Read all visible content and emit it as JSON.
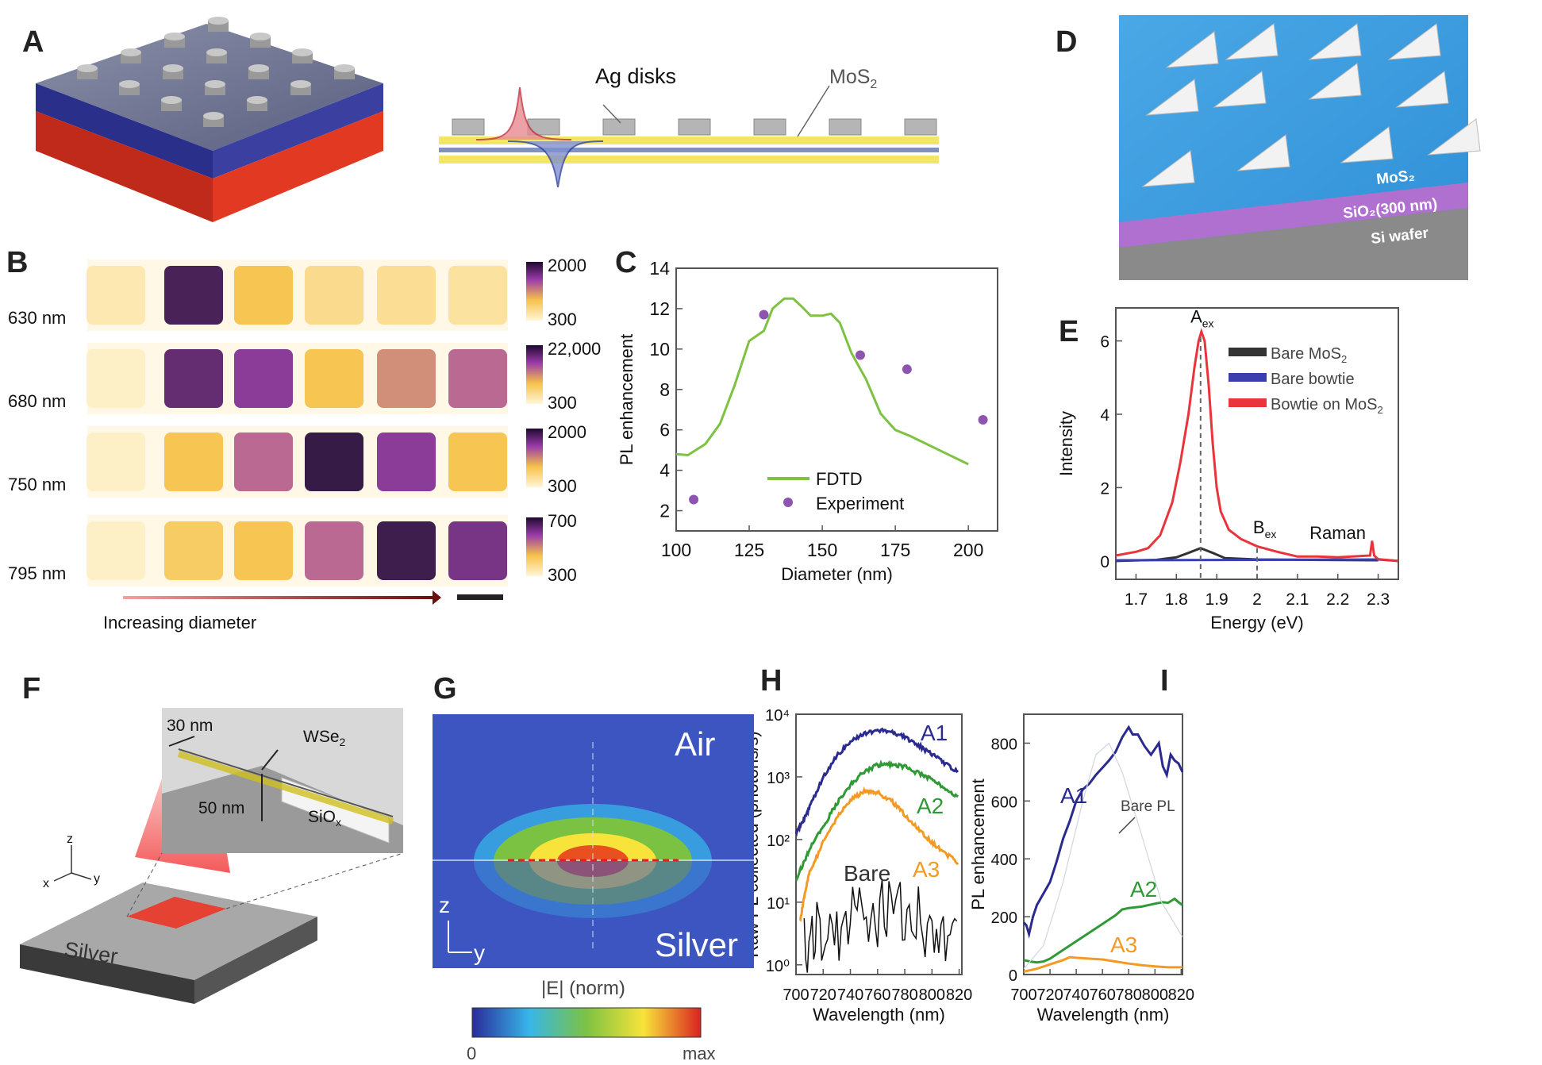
{
  "panel_labels": [
    "A",
    "B",
    "C",
    "D",
    "E",
    "F",
    "G",
    "H",
    "I"
  ],
  "panel_a": {
    "ag_disks_label": "Ag disks",
    "mos2_label": "MoS",
    "mos2_sub": "2"
  },
  "panel_b": {
    "rows": [
      {
        "wavelength": "630 nm",
        "cbar_max": "2000",
        "cbar_min": "300",
        "levels": [
          0.1,
          0.92,
          0.35,
          0.2,
          0.18,
          0.15
        ]
      },
      {
        "wavelength": "680 nm",
        "cbar_max": "22,000",
        "cbar_min": "300",
        "levels": [
          0.05,
          0.85,
          0.75,
          0.35,
          0.5,
          0.6
        ]
      },
      {
        "wavelength": "750 nm",
        "cbar_max": "2000",
        "cbar_min": "300",
        "levels": [
          0.05,
          0.35,
          0.6,
          0.97,
          0.75,
          0.35
        ]
      },
      {
        "wavelength": "795 nm",
        "cbar_max": "700",
        "cbar_min": "300",
        "levels": [
          0.05,
          0.3,
          0.35,
          0.6,
          0.95,
          0.8
        ]
      }
    ],
    "arrow_label": "Increasing diameter"
  },
  "panel_d": {
    "mos2": "MoS₂",
    "sio2": "SiO₂(300 nm)",
    "si": "Si wafer"
  },
  "panel_f": {
    "thickness_label": "30 nm",
    "material": "WSe",
    "material_sub": "2",
    "gap_label": "50 nm",
    "oxide": "SiO",
    "oxide_sub": "x",
    "substrate": "Silver",
    "axis_z": "z",
    "axis_x": "x",
    "axis_y": "y"
  },
  "panel_g": {
    "top_label": "Air",
    "bottom_label": "Silver",
    "axis_z": "z",
    "axis_y": "y",
    "cbar_title": "|E| (norm)",
    "cbar_min": "0",
    "cbar_max": "max"
  },
  "colors": {
    "fdtd": "#7dc243",
    "experiment": "#8e55b0",
    "bare_mos2": "#333333",
    "bare_bowtie": "#3a3fb0",
    "bowtie_on_mos2": "#e8343a",
    "A1": "#2b2a8f",
    "A2": "#2f9a35",
    "A3": "#f39a25",
    "bare": "#111111"
  },
  "chart_data": [
    {
      "id": "C",
      "type": "line",
      "xlabel": "Diameter (nm)",
      "ylabel": "PL enhancement",
      "xlim": [
        100,
        210
      ],
      "ylim": [
        1,
        14
      ],
      "xticks": [
        100,
        125,
        150,
        175,
        200
      ],
      "yticks": [
        2,
        4,
        6,
        8,
        10,
        12,
        14
      ],
      "legend": "bottom-center",
      "series": [
        {
          "name": "FDTD",
          "kind": "line",
          "color": "#7dc243",
          "x": [
            100,
            104,
            110,
            115,
            120,
            125,
            128,
            130,
            133,
            137,
            140,
            143,
            146,
            150,
            153,
            156,
            160,
            165,
            170,
            175,
            180,
            190,
            200
          ],
          "y": [
            4.8,
            4.75,
            5.3,
            6.3,
            8.2,
            10.4,
            10.7,
            10.9,
            12.0,
            12.5,
            12.5,
            12.1,
            11.65,
            11.65,
            11.75,
            11.3,
            9.8,
            8.5,
            6.8,
            6.0,
            5.7,
            5.0,
            4.3
          ]
        },
        {
          "name": "Experiment",
          "kind": "scatter",
          "color": "#8e55b0",
          "x": [
            106,
            130,
            163,
            179,
            205
          ],
          "y": [
            2.55,
            11.7,
            9.7,
            9.0,
            6.5
          ]
        }
      ]
    },
    {
      "id": "E",
      "type": "line",
      "xlabel": "Energy (eV)",
      "ylabel": "Intensity",
      "xlim": [
        1.65,
        2.35
      ],
      "ylim": [
        -0.5,
        6.9
      ],
      "xticks": [
        1.7,
        1.8,
        1.9,
        2.0,
        2.1,
        2.2,
        2.3
      ],
      "yticks": [
        0,
        2,
        4,
        6
      ],
      "legend": "top-right",
      "annotations": [
        {
          "text": "A",
          "sub": "ex",
          "x": 1.86
        },
        {
          "text": "B",
          "sub": "ex",
          "x": 2.0
        },
        {
          "text": "Raman",
          "x": 2.2
        }
      ],
      "series": [
        {
          "name": "Bare MoS",
          "name_sub": "2",
          "color": "#333333",
          "x": [
            1.65,
            1.75,
            1.8,
            1.83,
            1.86,
            1.89,
            1.92,
            2.0,
            2.3
          ],
          "y": [
            0,
            0.03,
            0.1,
            0.22,
            0.35,
            0.22,
            0.08,
            0.04,
            0.02
          ]
        },
        {
          "name": "Bare bowtie",
          "color": "#3a3fb0",
          "x": [
            1.65,
            2.0,
            2.3,
            2.35
          ],
          "y": [
            0.02,
            0.03,
            0.04,
            0.0
          ]
        },
        {
          "name": "Bowtie on MoS",
          "name_sub": "2",
          "color": "#e8343a",
          "x": [
            1.65,
            1.7,
            1.73,
            1.76,
            1.79,
            1.81,
            1.83,
            1.845,
            1.855,
            1.862,
            1.87,
            1.88,
            1.89,
            1.9,
            1.91,
            1.93,
            1.96,
            2.0,
            2.05,
            2.1,
            2.15,
            2.2,
            2.28,
            2.285,
            2.29,
            2.3,
            2.35
          ],
          "y": [
            0.15,
            0.25,
            0.35,
            0.7,
            1.6,
            2.7,
            4.0,
            5.3,
            6.0,
            6.25,
            6.0,
            4.8,
            3.2,
            2.0,
            1.35,
            0.85,
            0.6,
            0.4,
            0.25,
            0.12,
            0.12,
            0.1,
            0.15,
            0.55,
            0.15,
            0.05,
            0.0
          ]
        }
      ]
    },
    {
      "id": "H",
      "type": "line",
      "yscale": "log",
      "xlabel": "Wavelength (nm)",
      "ylabel": "Raw PL collected (photons/s)",
      "xlim": [
        700,
        822
      ],
      "ylim": [
        0.7,
        10000
      ],
      "xticks": [
        700,
        720,
        740,
        760,
        780,
        800,
        820
      ],
      "yticks": [
        "10⁰",
        "10¹",
        "10²",
        "10³",
        "10⁴"
      ],
      "series": [
        {
          "name": "A1",
          "color": "#2b2a8f",
          "x": [
            700,
            705,
            710,
            720,
            730,
            740,
            750,
            760,
            770,
            780,
            790,
            800,
            810,
            820
          ],
          "y": [
            130,
            200,
            330,
            1000,
            2200,
            3600,
            5000,
            5600,
            5200,
            4300,
            3200,
            2300,
            1600,
            1150
          ]
        },
        {
          "name": "A2",
          "color": "#2f9a35",
          "x": [
            700,
            705,
            710,
            720,
            730,
            740,
            750,
            760,
            770,
            780,
            790,
            800,
            810,
            820
          ],
          "y": [
            22,
            40,
            70,
            160,
            380,
            750,
            1200,
            1550,
            1600,
            1450,
            1150,
            900,
            650,
            460
          ]
        },
        {
          "name": "A3",
          "color": "#f39a25",
          "x": [
            703,
            706,
            710,
            720,
            730,
            740,
            750,
            755,
            760,
            770,
            780,
            790,
            800,
            810,
            820
          ],
          "y": [
            5,
            12,
            30,
            90,
            220,
            420,
            580,
            600,
            560,
            420,
            250,
            150,
            90,
            60,
            42
          ]
        },
        {
          "name": "Bare",
          "color": "#111111",
          "x": [
            706,
            720,
            740,
            760,
            780,
            800,
            820
          ],
          "y": [
            2.5,
            4,
            7,
            10,
            8,
            5,
            4
          ]
        }
      ]
    },
    {
      "id": "I",
      "type": "line",
      "xlabel": "Wavelength (nm)",
      "ylabel": "PL enhancement",
      "xlim": [
        700,
        821
      ],
      "ylim": [
        0,
        900
      ],
      "xticks": [
        700,
        720,
        740,
        760,
        780,
        800,
        820
      ],
      "yticks": [
        0,
        200,
        400,
        600,
        800
      ],
      "annotations": [
        {
          "text": "Bare PL"
        }
      ],
      "series": [
        {
          "name": "A1",
          "color": "#2b2a8f",
          "x": [
            700,
            702,
            704,
            707,
            710,
            715,
            720,
            725,
            730,
            735,
            740,
            745,
            750,
            755,
            760,
            765,
            770,
            775,
            780,
            783,
            787,
            792,
            797,
            800,
            803,
            806,
            809,
            812,
            815,
            818,
            821
          ],
          "y": [
            180,
            170,
            140,
            200,
            240,
            280,
            320,
            390,
            470,
            530,
            600,
            640,
            660,
            690,
            715,
            740,
            770,
            820,
            855,
            830,
            830,
            790,
            760,
            780,
            800,
            720,
            690,
            760,
            740,
            730,
            700
          ]
        },
        {
          "name": "A2",
          "color": "#2f9a35",
          "x": [
            700,
            705,
            710,
            715,
            720,
            730,
            740,
            750,
            760,
            770,
            775,
            780,
            790,
            800,
            806,
            810,
            815,
            818,
            821
          ],
          "y": [
            50,
            45,
            42,
            45,
            55,
            85,
            115,
            145,
            175,
            205,
            225,
            230,
            235,
            245,
            250,
            248,
            262,
            250,
            240
          ]
        },
        {
          "name": "A3",
          "color": "#f39a25",
          "x": [
            700,
            710,
            720,
            730,
            735,
            740,
            750,
            760,
            770,
            780,
            790,
            800,
            810,
            821
          ],
          "y": [
            10,
            20,
            35,
            50,
            60,
            58,
            55,
            52,
            45,
            38,
            32,
            28,
            25,
            25
          ]
        },
        {
          "name": "Bare PL",
          "color": "#cfd6e0",
          "x": [
            700,
            715,
            730,
            745,
            755,
            765,
            775,
            790,
            805,
            821
          ],
          "y": [
            20,
            100,
            320,
            600,
            760,
            800,
            700,
            480,
            250,
            130
          ]
        }
      ]
    }
  ]
}
